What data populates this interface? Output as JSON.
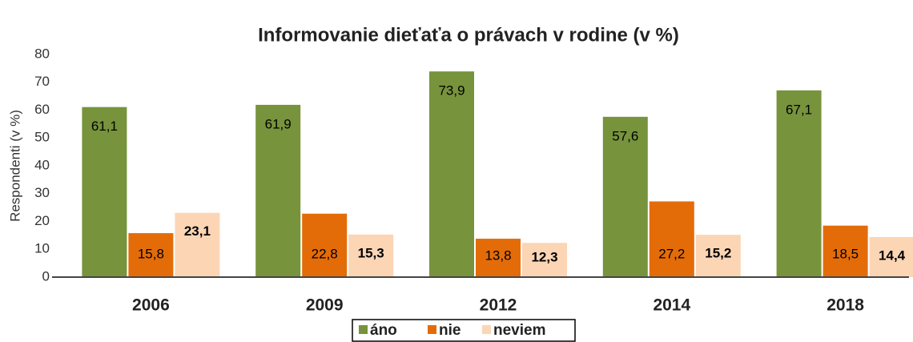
{
  "chart_data": {
    "type": "bar",
    "title": "Informovanie dieťaťa o právach v rodine (v  %)",
    "y_label": "Respondenti (v  %)",
    "categories": [
      "2006",
      "2009",
      "2012",
      "2014",
      "2018"
    ],
    "series": [
      {
        "name": "áno",
        "color": "#77933c",
        "values": [
          61.1,
          61.9,
          73.9,
          57.6,
          67.1
        ],
        "value_labels": [
          "61,1",
          "61,9",
          "73,9",
          "57,6",
          "67,1"
        ]
      },
      {
        "name": "nie",
        "color": "#e36c09",
        "values": [
          15.8,
          22.8,
          13.8,
          27.2,
          18.5
        ],
        "value_labels": [
          "15,8",
          "22,8",
          "13,8",
          "27,2",
          "18,5"
        ]
      },
      {
        "name": "neviem",
        "color": "#fcd5b5",
        "values": [
          23.1,
          15.3,
          12.3,
          15.2,
          14.4
        ],
        "value_labels": [
          "23,1",
          "15,3",
          "12,3",
          "15,2",
          "14,4"
        ]
      }
    ],
    "ylim": [
      0,
      80
    ],
    "yticks": [
      0,
      10,
      20,
      30,
      40,
      50,
      60,
      70,
      80
    ],
    "legend": "bottom"
  }
}
